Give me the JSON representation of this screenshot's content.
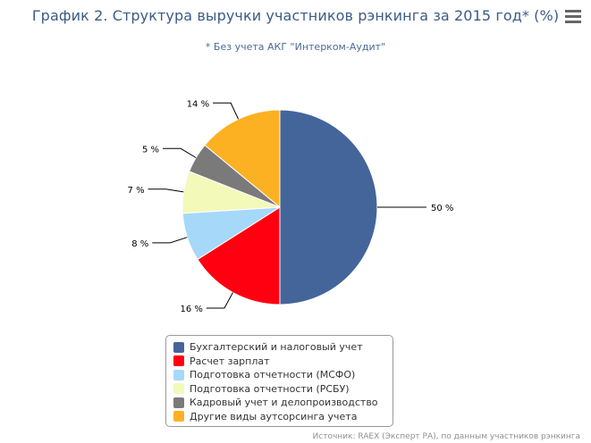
{
  "header": {
    "title": "График 2. Структура выручки участников рэнкинга за 2015 год* (%)",
    "subtitle": "* Без учета АКГ \"Интерком-Аудит\"",
    "menu_icon": "hamburger-menu-icon"
  },
  "chart_data": {
    "type": "pie",
    "title": "График 2. Структура выручки участников рэнкинга за 2015 год* (%)",
    "subtitle": "* Без учета АКГ \"Интерком-Аудит\"",
    "categories": [
      "Бухгалтерский и налоговый учет",
      "Расчет зарплат",
      "Подготовка отчетности (МСФО)",
      "Подготовка отчетности (РСБУ)",
      "Кадровый учет и делопроизводство",
      "Другие виды аутсорсинга учета"
    ],
    "values": [
      50,
      16,
      8,
      7,
      5,
      14
    ],
    "labels": [
      "50 %",
      "16 %",
      "8 %",
      "7 %",
      "5 %",
      "14 %"
    ],
    "colors": [
      "#44659a",
      "#ff0011",
      "#a6d8fa",
      "#f3f9b9",
      "#7a7a7a",
      "#fcb122"
    ],
    "legend_position": "bottom"
  },
  "footer": {
    "credits": "Источник: RAEX (Эксперт РА), по данным участников рэнкинга"
  }
}
